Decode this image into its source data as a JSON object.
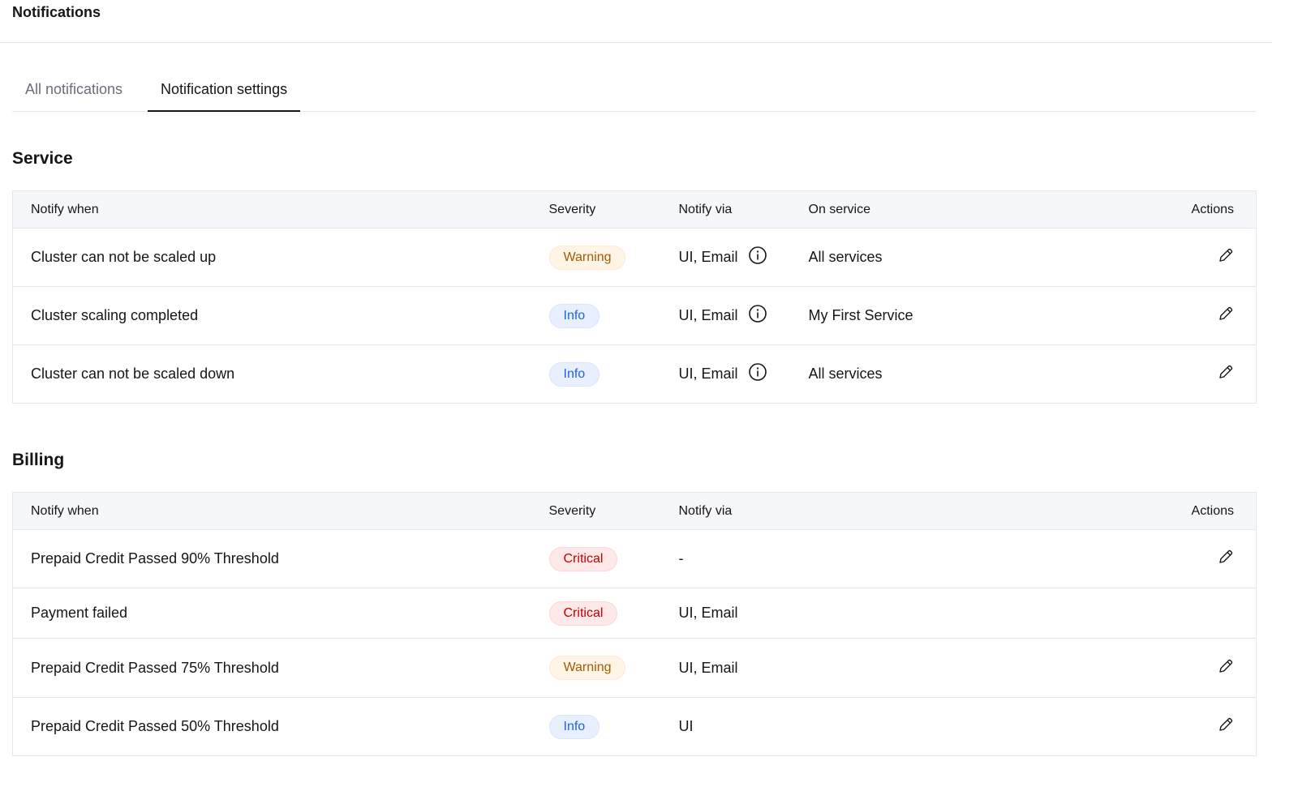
{
  "header": {
    "title": "Notifications"
  },
  "tabs": [
    {
      "label": "All notifications"
    },
    {
      "label": "Notification settings",
      "active": true
    }
  ],
  "service": {
    "title": "Service",
    "columns": [
      "Notify when",
      "Severity",
      "Notify via",
      "On service",
      "Actions"
    ],
    "rows": [
      {
        "notify_when": "Cluster can not be scaled up",
        "severity": "Warning",
        "notify_via": "UI, Email",
        "on_service": "All services"
      },
      {
        "notify_when": "Cluster scaling completed",
        "severity": "Info",
        "notify_via": "UI, Email",
        "on_service": "My First Service"
      },
      {
        "notify_when": "Cluster can not be scaled down",
        "severity": "Info",
        "notify_via": "UI, Email",
        "on_service": "All services"
      }
    ]
  },
  "billing": {
    "title": "Billing",
    "columns": [
      "Notify when",
      "Severity",
      "Notify via",
      "Actions"
    ],
    "rows": [
      {
        "notify_when": "Prepaid Credit Passed 90% Threshold",
        "severity": "Critical",
        "notify_via": "-",
        "editable": true
      },
      {
        "notify_when": "Payment failed",
        "severity": "Critical",
        "notify_via": "UI, Email",
        "editable": false
      },
      {
        "notify_when": "Prepaid Credit Passed 75% Threshold",
        "severity": "Warning",
        "notify_via": "UI, Email",
        "editable": true
      },
      {
        "notify_when": "Prepaid Credit Passed 50% Threshold",
        "severity": "Info",
        "notify_via": "UI",
        "editable": true
      }
    ]
  },
  "colors": {
    "warning": "#a65a00",
    "info": "#1d65e6",
    "critical": "#c10000"
  }
}
